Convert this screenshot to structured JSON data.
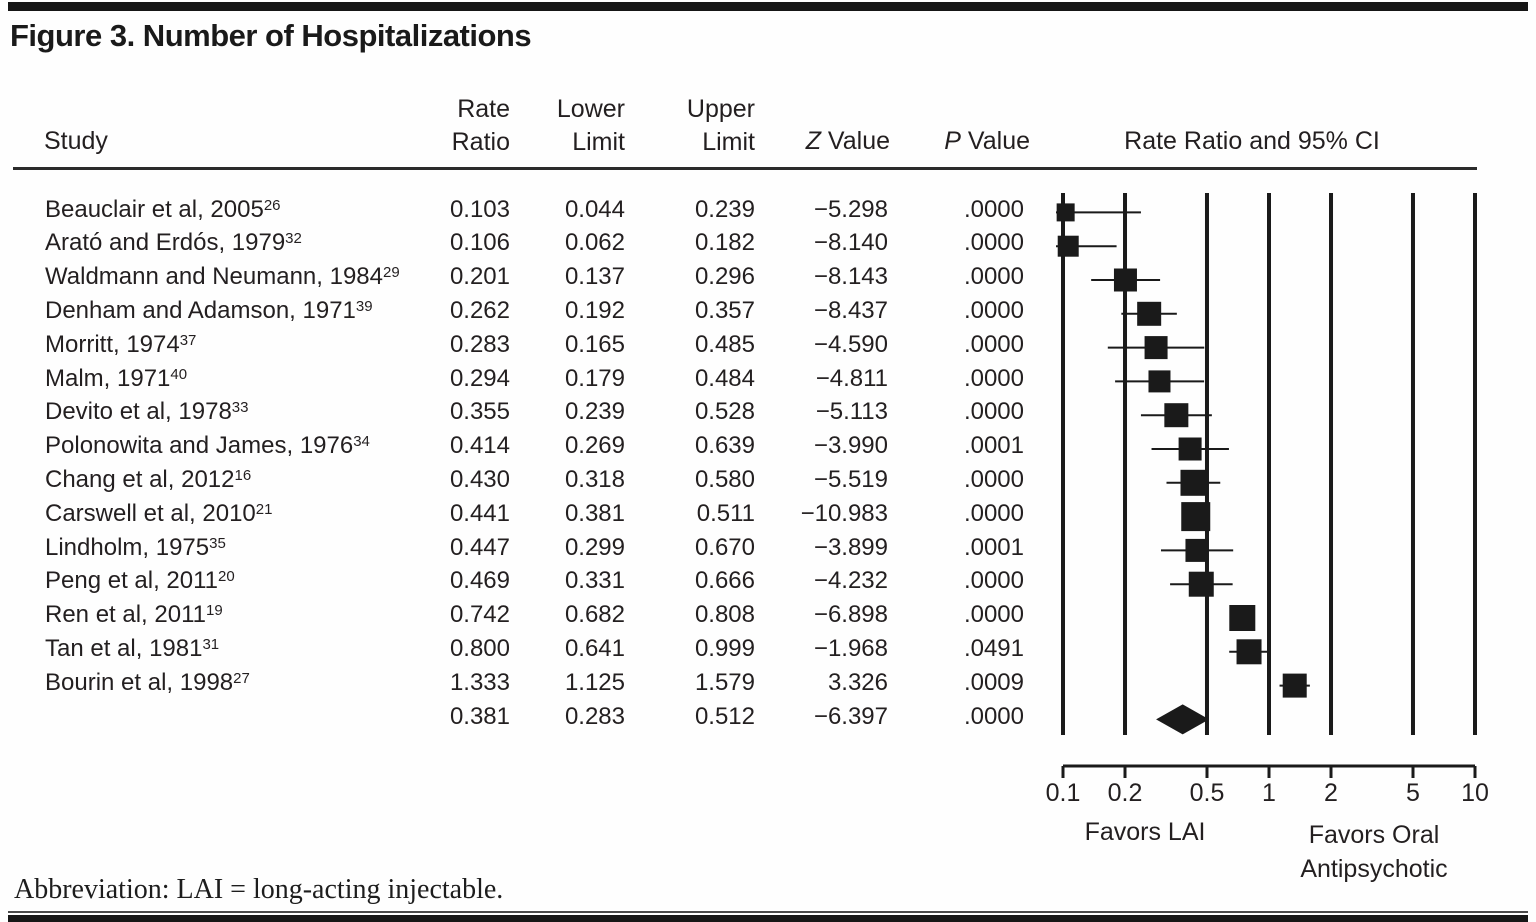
{
  "figure": {
    "title": "Figure 3. Number of Hospitalizations",
    "abbreviation": "Abbreviation: LAI = long-acting injectable."
  },
  "table": {
    "headers": {
      "study": "Study",
      "rate1": "Rate",
      "rate2": "Ratio",
      "lower1": "Lower",
      "lower2": "Limit",
      "upper1": "Upper",
      "upper2": "Limit",
      "z_italic": "Z",
      "z_rest": " Value",
      "p_italic": "P",
      "p_rest": " Value",
      "ci": "Rate Ratio and 95% CI"
    }
  },
  "colors": {
    "text": "#231f20",
    "marker": "#1a1a1a",
    "gridline": "#1a1a1a",
    "highlight": "#e6e5e2",
    "bar": "#161616"
  },
  "chart_data": {
    "type": "forest",
    "x_scale": "log",
    "x_min": 0.1,
    "x_max": 10,
    "x_ticks": [
      "0.1",
      "0.2",
      "0.5",
      "1",
      "2",
      "5",
      "10"
    ],
    "favors_left": "Favors LAI",
    "favors_right1": "Favors Oral",
    "favors_right2": "Antipsychotic",
    "studies": [
      {
        "name": "Beauclair et al, 2005",
        "ref": "26",
        "rate_ratio": "0.103",
        "lower": "0.044",
        "upper": "0.239",
        "z": "−5.298",
        "p": ".0000",
        "size": 18
      },
      {
        "name": "Arató and Erdós, 1979",
        "ref": "32",
        "rate_ratio": "0.106",
        "lower": "0.062",
        "upper": "0.182",
        "z": "−8.140",
        "p": ".0000",
        "size": 21
      },
      {
        "name": "Waldmann and Neumann, 1984",
        "ref": "29",
        "rate_ratio": "0.201",
        "lower": "0.137",
        "upper": "0.296",
        "z": "−8.143",
        "p": ".0000",
        "size": 23
      },
      {
        "name": "Denham and Adamson, 1971",
        "ref": "39",
        "rate_ratio": "0.262",
        "lower": "0.192",
        "upper": "0.357",
        "z": "−8.437",
        "p": ".0000",
        "size": 24
      },
      {
        "name": "Morritt, 1974",
        "ref": "37",
        "rate_ratio": "0.283",
        "lower": "0.165",
        "upper": "0.485",
        "z": "−4.590",
        "p": ".0000",
        "size": 23
      },
      {
        "name": "Malm, 1971",
        "ref": "40",
        "rate_ratio": "0.294",
        "lower": "0.179",
        "upper": "0.484",
        "z": "−4.811",
        "p": ".0000",
        "size": 22
      },
      {
        "name": "Devito et al, 1978",
        "ref": "33",
        "rate_ratio": "0.355",
        "lower": "0.239",
        "upper": "0.528",
        "z": "−5.113",
        "p": ".0000",
        "size": 24
      },
      {
        "name": "Polonowita and James, 1976",
        "ref": "34",
        "rate_ratio": "0.414",
        "lower": "0.269",
        "upper": "0.639",
        "z": "−3.990",
        "p": ".0001",
        "size": 23
      },
      {
        "name": "Chang et al, 2012",
        "ref": "16",
        "rate_ratio": "0.430",
        "lower": "0.318",
        "upper": "0.580",
        "z": "−5.519",
        "p": ".0000",
        "size": 26
      },
      {
        "name": "Carswell et al, 2010",
        "ref": "21",
        "rate_ratio": "0.441",
        "lower": "0.381",
        "upper": "0.511",
        "z": "−10.983",
        "p": ".0000",
        "size": 29
      },
      {
        "name": "Lindholm, 1975",
        "ref": "35",
        "rate_ratio": "0.447",
        "lower": "0.299",
        "upper": "0.670",
        "z": "−3.899",
        "p": ".0001",
        "size": 23
      },
      {
        "name": "Peng et al, 2011",
        "ref": "20",
        "rate_ratio": "0.469",
        "lower": "0.331",
        "upper": "0.666",
        "z": "−4.232",
        "p": ".0000",
        "size": 25
      },
      {
        "name": "Ren et al, 2011",
        "ref": "19",
        "rate_ratio": "0.742",
        "lower": "0.682",
        "upper": "0.808",
        "z": "−6.898",
        "p": ".0000",
        "size": 26
      },
      {
        "name": "Tan et al, 1981",
        "ref": "31",
        "rate_ratio": "0.800",
        "lower": "0.641",
        "upper": "0.999",
        "z": "−1.968",
        "p": ".0491",
        "size": 25
      },
      {
        "name": "Bourin et al, 1998",
        "ref": "27",
        "rate_ratio": "1.333",
        "lower": "1.125",
        "upper": "1.579",
        "z": "3.326",
        "p": ".0009",
        "size": 24
      }
    ],
    "summary": {
      "rate_ratio": "0.381",
      "lower": "0.283",
      "upper": "0.512",
      "z": "−6.397",
      "p": ".0000"
    }
  }
}
